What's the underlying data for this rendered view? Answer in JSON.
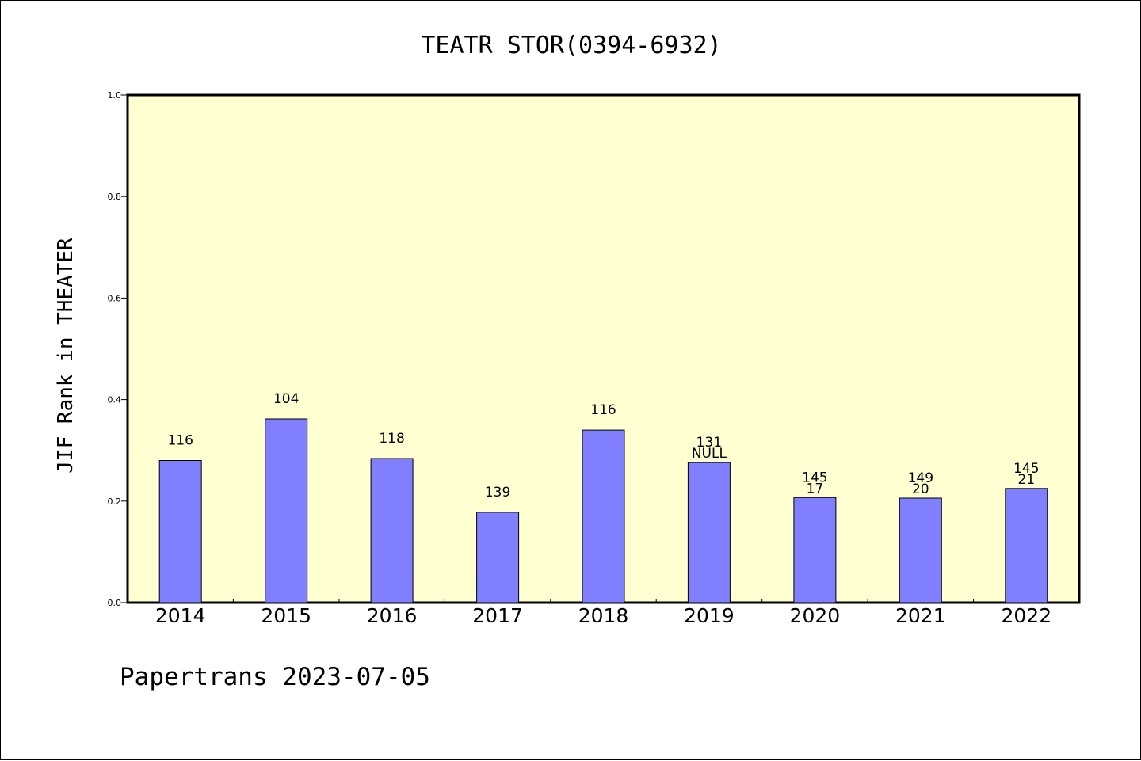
{
  "chart_data": {
    "type": "bar",
    "title": "TEATR STOR(0394-6932)",
    "ylabel": "JIF Rank in THEATER",
    "xlabel": "",
    "ylim": [
      0.0,
      1.0
    ],
    "yticks": [
      "0.0",
      "0.2",
      "0.4",
      "0.6",
      "0.8",
      "1.0"
    ],
    "categories": [
      "2014",
      "2015",
      "2016",
      "2017",
      "2018",
      "2019",
      "2020",
      "2021",
      "2022"
    ],
    "values": [
      0.28,
      0.362,
      0.284,
      0.178,
      0.34,
      0.276,
      0.207,
      0.206,
      0.225
    ],
    "bar_labels": [
      [
        "116"
      ],
      [
        "104"
      ],
      [
        "118"
      ],
      [
        "139"
      ],
      [
        "116"
      ],
      [
        "131",
        "NULL"
      ],
      [
        "145",
        "17"
      ],
      [
        "149",
        "20"
      ],
      [
        "145",
        "21"
      ]
    ],
    "grid": false,
    "colors": {
      "plot_background": "#ffffd2",
      "bar": "#8080ff",
      "bar_edge": "#000000"
    }
  },
  "footer": "Papertrans 2023-07-05"
}
